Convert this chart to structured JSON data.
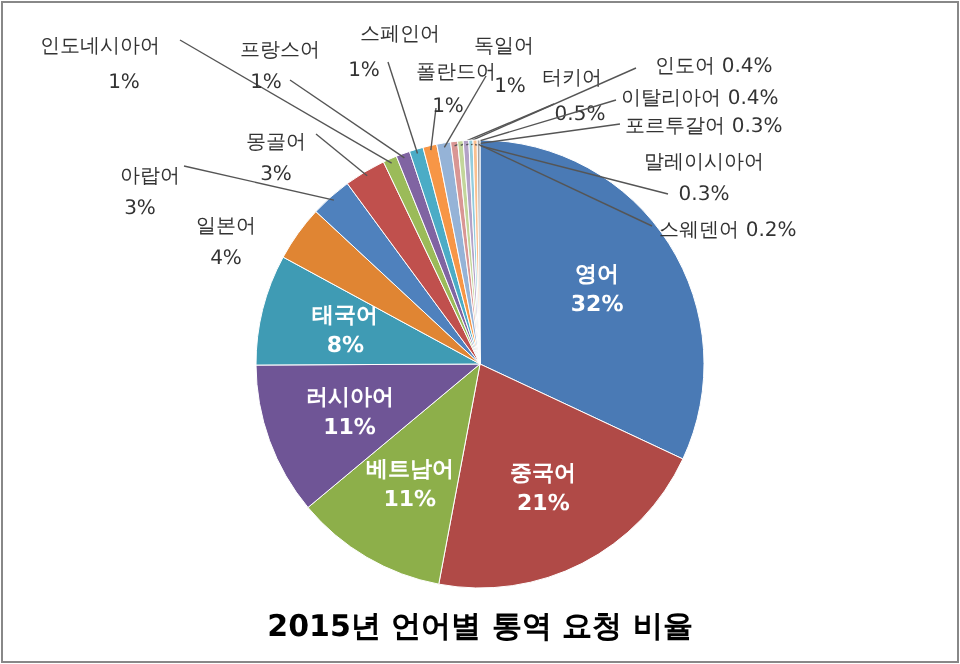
{
  "chart_data": {
    "type": "pie",
    "title": "2015년 언어별 통역 요청 비율",
    "categories": [
      "영어",
      "중국어",
      "베트남어",
      "러시아어",
      "태국어",
      "일본어",
      "아랍어",
      "몽골어",
      "인도네시아어",
      "프랑스어",
      "스페인어",
      "폴란드어",
      "독일어",
      "터키어",
      "인도어",
      "이탈리아어",
      "포르투갈어",
      "말레이시아어",
      "스웨덴어"
    ],
    "values": [
      32,
      21,
      11,
      11,
      8,
      4,
      3,
      3,
      1,
      1,
      1,
      1,
      1,
      0.5,
      0.4,
      0.4,
      0.3,
      0.3,
      0.2
    ],
    "colors": [
      "#4a7ab5",
      "#b04a47",
      "#8daf4a",
      "#6f5596",
      "#3f9bb4",
      "#e08533",
      "#4f81bd",
      "#c0504d",
      "#9bbb59",
      "#8064a2",
      "#4bacc6",
      "#f79646",
      "#95b3d7",
      "#d99694",
      "#c3d69b",
      "#b3a2c7",
      "#93cddd",
      "#fac090",
      "#a5a5a5"
    ],
    "value_labels": [
      "32%",
      "21%",
      "11%",
      "11%",
      "8%",
      "4%",
      "3%",
      "3%",
      "1%",
      "1%",
      "1%",
      "1%",
      "1%",
      "0.5%",
      "0.4%",
      "0.4%",
      "0.3%",
      "0.3%",
      "0.2%"
    ]
  }
}
